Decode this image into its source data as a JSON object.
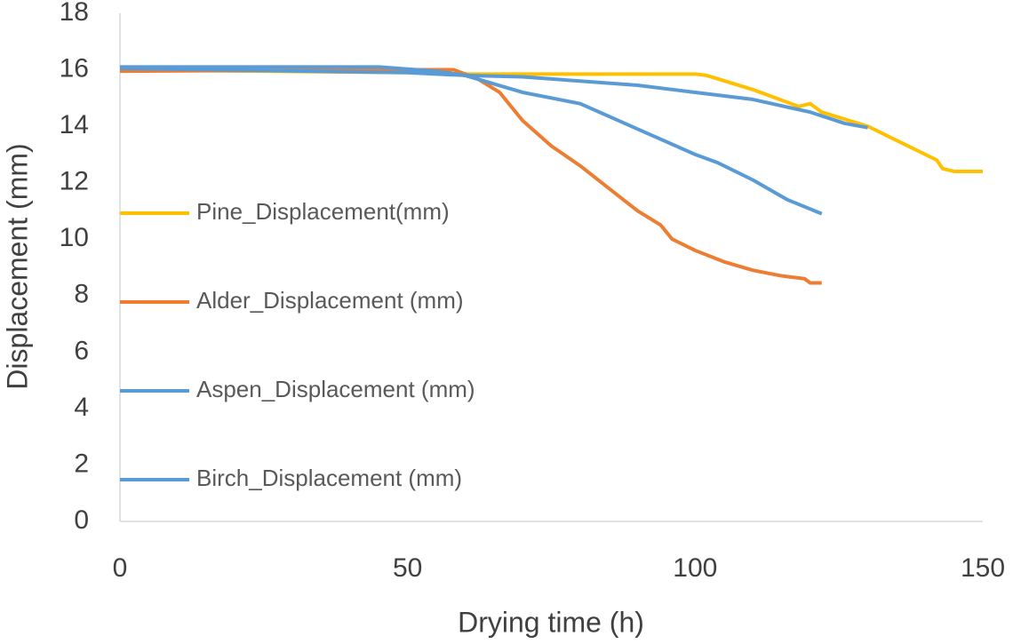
{
  "chart_data": {
    "type": "line",
    "x_label": "Drying time (h)",
    "y_label": "Displacement (mm)",
    "xlim": [
      0,
      150
    ],
    "xticks": [
      0,
      50,
      100,
      150
    ],
    "ylim": [
      0,
      18
    ],
    "yticks": [
      0,
      2,
      4,
      6,
      8,
      10,
      12,
      14,
      16,
      18
    ],
    "grid": false,
    "legend": "left",
    "series": [
      {
        "name": "Pine_Displacement(mm)",
        "color": "#FFC000",
        "x": [
          0,
          50,
          60,
          100,
          102,
          110,
          118,
          120,
          122,
          130,
          140,
          142,
          143,
          145,
          150
        ],
        "values": [
          16,
          15.9,
          15.85,
          15.85,
          15.8,
          15.3,
          14.7,
          14.8,
          14.5,
          14.0,
          13.0,
          12.8,
          12.5,
          12.4,
          12.4
        ]
      },
      {
        "name": "Alder_Displacement (mm)",
        "color": "#ED7D31",
        "x": [
          0,
          50,
          58,
          62,
          66,
          70,
          75,
          80,
          85,
          90,
          94,
          96,
          100,
          105,
          110,
          115,
          119,
          120,
          122
        ],
        "values": [
          15.95,
          16.0,
          16.0,
          15.7,
          15.2,
          14.2,
          13.3,
          12.6,
          11.8,
          11.0,
          10.5,
          10.0,
          9.6,
          9.2,
          8.9,
          8.7,
          8.6,
          8.45,
          8.45
        ]
      },
      {
        "name": "Aspen_Displacement (mm)",
        "color": "#5B9BD5",
        "x": [
          0,
          45,
          55,
          60,
          65,
          70,
          80,
          90,
          100,
          104,
          110,
          116,
          122
        ],
        "values": [
          16.1,
          16.1,
          15.95,
          15.8,
          15.5,
          15.2,
          14.8,
          13.9,
          13.0,
          12.7,
          12.1,
          11.4,
          10.9
        ]
      },
      {
        "name": "Birch_Displacement (mm)",
        "color": "#5B9BD5",
        "x": [
          0,
          50,
          55,
          60,
          70,
          80,
          90,
          100,
          110,
          120,
          126,
          130
        ],
        "values": [
          16.05,
          15.9,
          15.85,
          15.8,
          15.75,
          15.6,
          15.45,
          15.2,
          14.95,
          14.5,
          14.1,
          13.95
        ]
      }
    ]
  }
}
